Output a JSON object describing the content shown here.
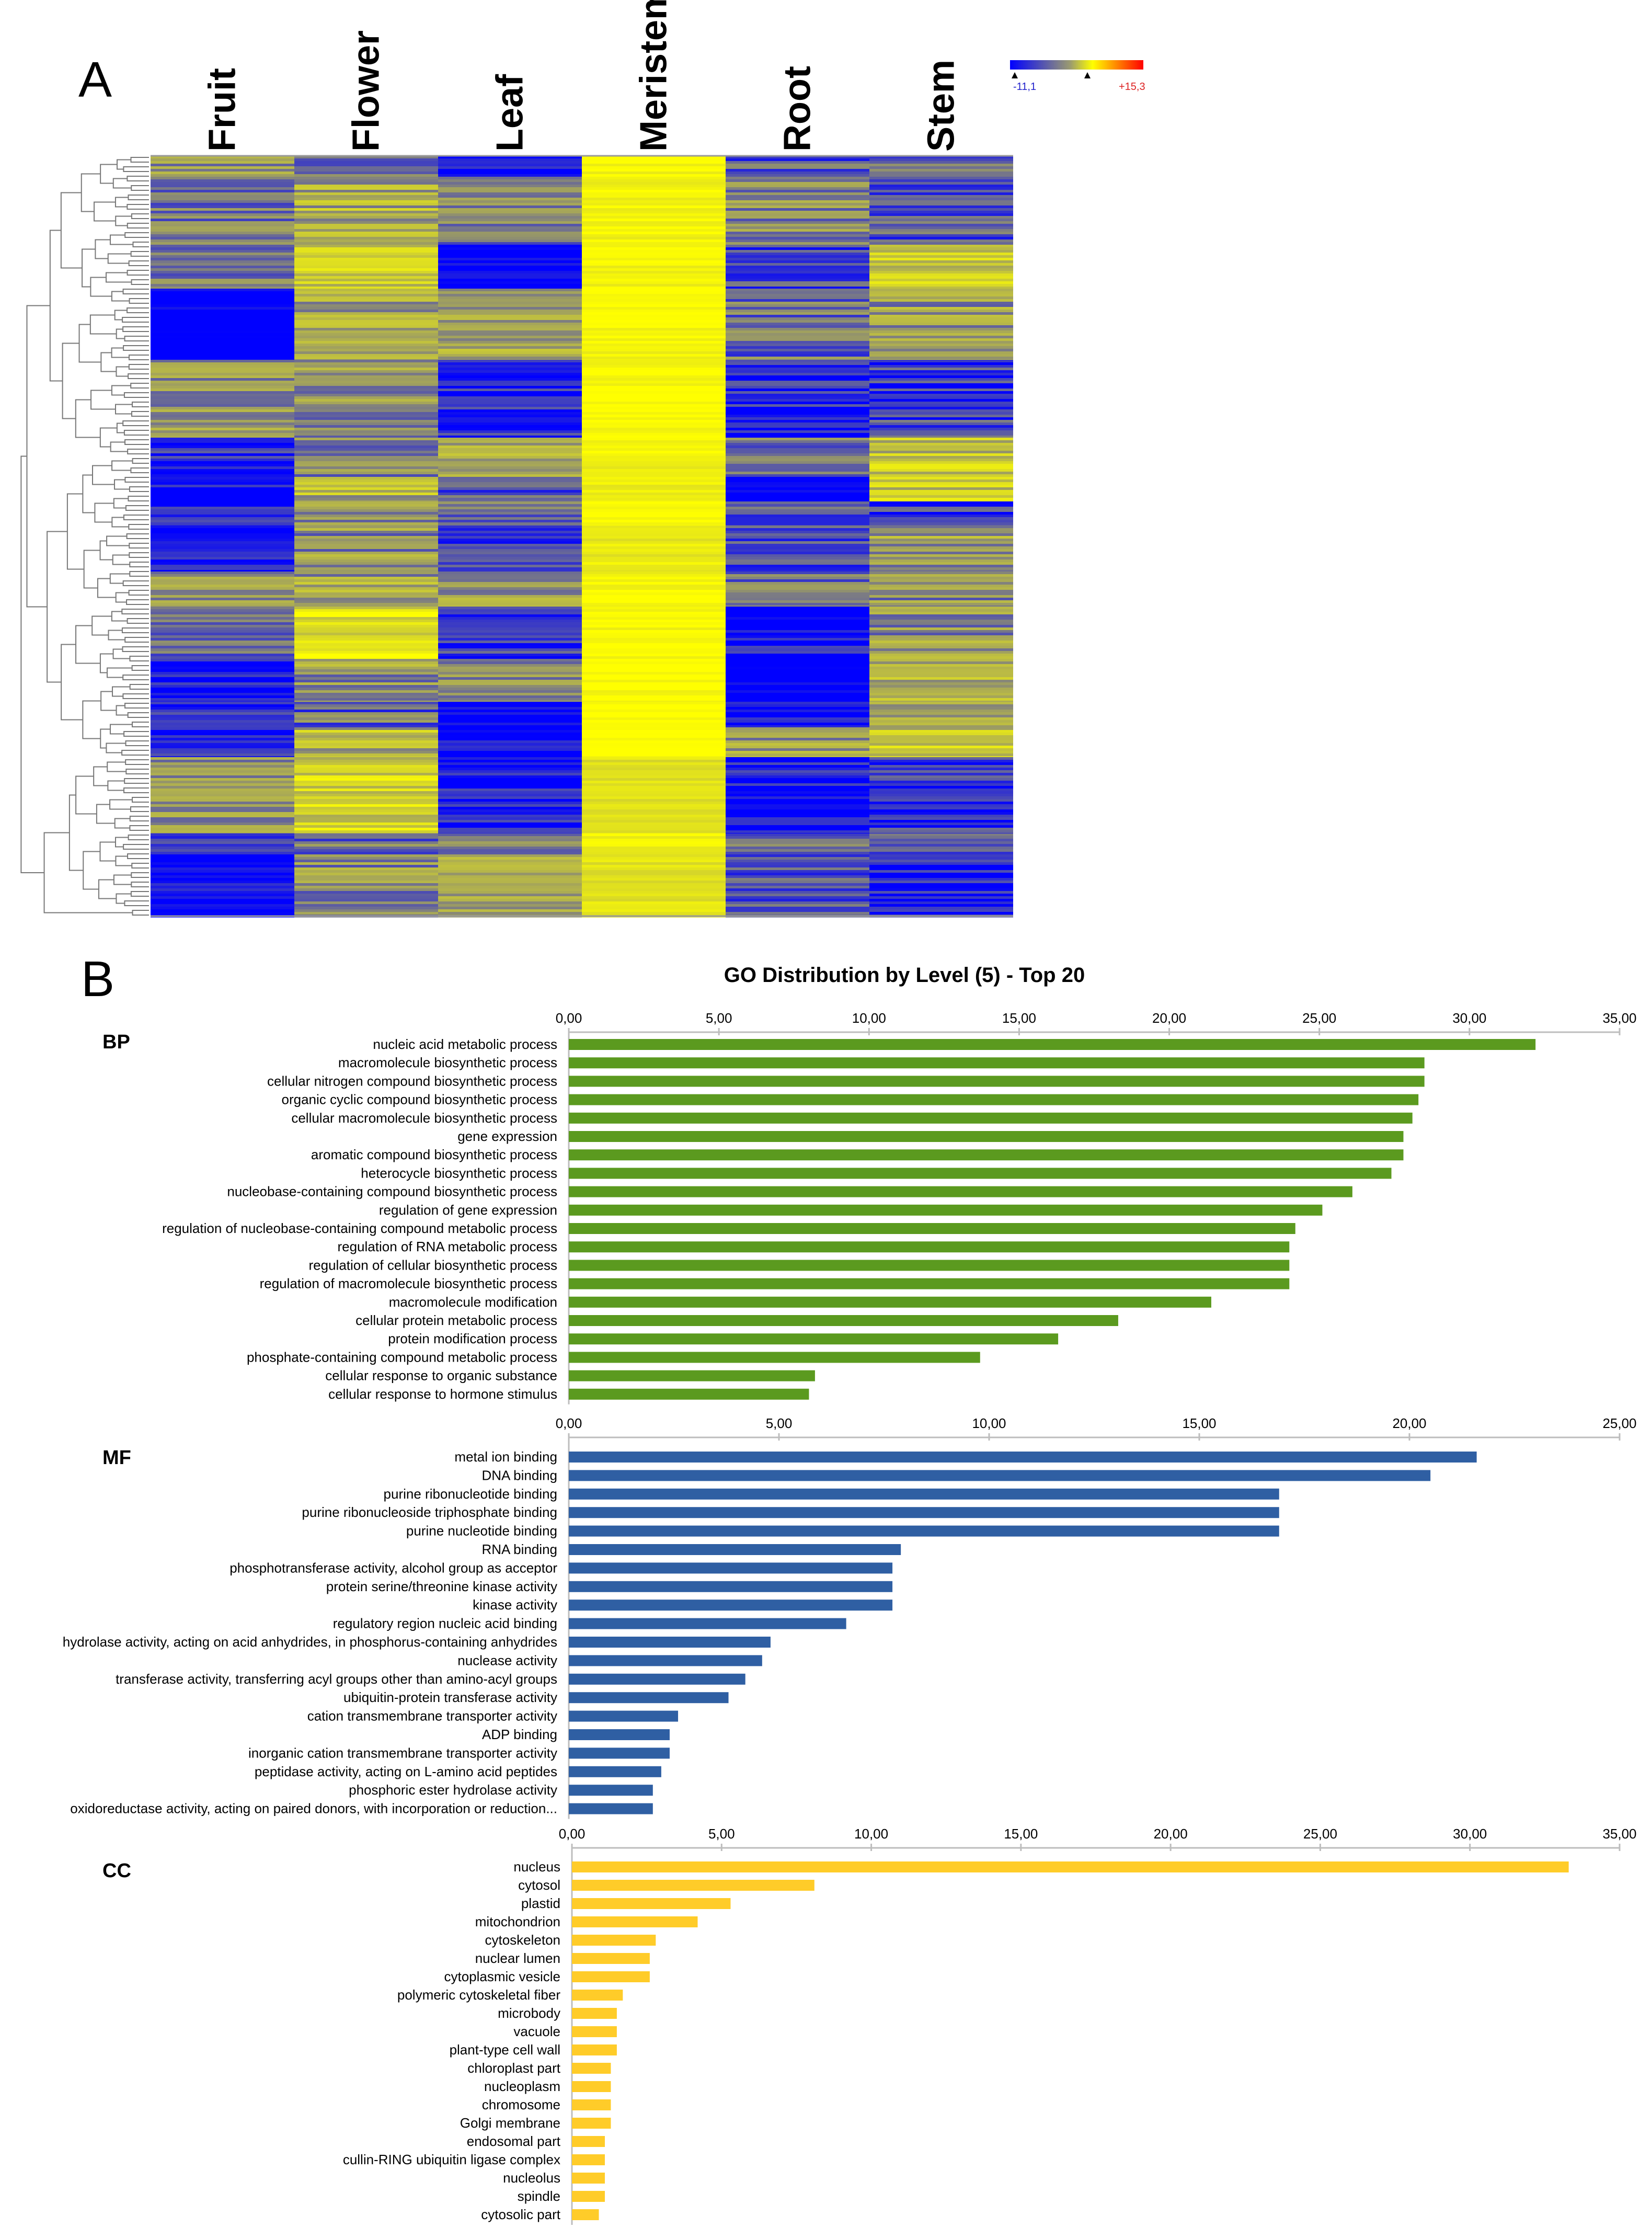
{
  "panels": {
    "a_letter": "A",
    "b_letter": "B"
  },
  "heatmap": {
    "samples": [
      "Fruit",
      "Flower",
      "Leaf",
      "Meristem",
      "Root",
      "Stem"
    ],
    "scale_min": "-11,1",
    "scale_max": "+15,3",
    "colors": {
      "low": "#0000ff",
      "mid": "#a0a060",
      "high": "#ffff00",
      "scale_high": "#ff0000"
    }
  },
  "chart_data": [
    {
      "type": "bar",
      "orientation": "horizontal",
      "title": "GO Distribution by Level (5) - Top 20",
      "section": "BP",
      "color": "#5b9a1f",
      "xlim": [
        0,
        35
      ],
      "ticks": [
        "0,00",
        "5,00",
        "10,00",
        "15,00",
        "20,00",
        "25,00",
        "30,00",
        "35,00"
      ],
      "categories": [
        "nucleic acid metabolic process",
        "macromolecule biosynthetic process",
        "cellular nitrogen compound biosynthetic process",
        "organic cyclic compound biosynthetic process",
        "cellular macromolecule biosynthetic process",
        "gene expression",
        "aromatic compound biosynthetic process",
        "heterocycle biosynthetic process",
        "nucleobase-containing compound biosynthetic process",
        "regulation of gene expression",
        "regulation of nucleobase-containing compound metabolic process",
        "regulation of RNA metabolic process",
        "regulation of cellular biosynthetic process",
        "regulation of macromolecule biosynthetic process",
        "macromolecule modification",
        "cellular protein metabolic process",
        "protein modification process",
        "phosphate-containing compound metabolic process",
        "cellular response to organic substance",
        "cellular response to hormone stimulus"
      ],
      "values": [
        32.2,
        28.5,
        28.5,
        28.3,
        28.1,
        27.8,
        27.8,
        27.4,
        26.1,
        25.1,
        24.2,
        24.0,
        24.0,
        24.0,
        21.4,
        18.3,
        16.3,
        13.7,
        8.2,
        8.0
      ]
    },
    {
      "type": "bar",
      "orientation": "horizontal",
      "section": "MF",
      "color": "#2f5fa3",
      "xlim": [
        0,
        25
      ],
      "ticks": [
        "0,00",
        "5,00",
        "10,00",
        "15,00",
        "20,00",
        "25,00"
      ],
      "categories": [
        "metal ion binding",
        "DNA binding",
        "purine ribonucleotide binding",
        "purine ribonucleoside triphosphate binding",
        "purine nucleotide binding",
        "RNA binding",
        "phosphotransferase activity, alcohol group as acceptor",
        "protein serine/threonine kinase activity",
        "kinase activity",
        "regulatory region nucleic acid binding",
        "hydrolase activity, acting on acid anhydrides, in phosphorus-containing anhydrides",
        "nuclease activity",
        "transferase activity, transferring acyl groups other than amino-acyl groups",
        "ubiquitin-protein transferase activity",
        "cation transmembrane transporter activity",
        "ADP binding",
        "inorganic cation transmembrane transporter activity",
        "peptidase activity, acting on L-amino acid peptides",
        "phosphoric ester hydrolase activity",
        "oxidoreductase activity, acting on paired donors, with incorporation or reduction..."
      ],
      "values": [
        21.6,
        20.5,
        16.9,
        16.9,
        16.9,
        7.9,
        7.7,
        7.7,
        7.7,
        6.6,
        4.8,
        4.6,
        4.2,
        3.8,
        2.6,
        2.4,
        2.4,
        2.2,
        2.0,
        2.0
      ]
    },
    {
      "type": "bar",
      "orientation": "horizontal",
      "section": "CC",
      "color": "#ffcc29",
      "xlim": [
        0,
        35
      ],
      "ticks": [
        "0,00",
        "5,00",
        "10,00",
        "15,00",
        "20,00",
        "25,00",
        "30,00",
        "35,00"
      ],
      "categories": [
        "nucleus",
        "cytosol",
        "plastid",
        "mitochondrion",
        "cytoskeleton",
        "nuclear lumen",
        "cytoplasmic vesicle",
        "polymeric cytoskeletal fiber",
        "microbody",
        "vacuole",
        "plant-type cell wall",
        "chloroplast part",
        "nucleoplasm",
        "chromosome",
        "Golgi membrane",
        "endosomal part",
        "cullin-RING ubiquitin ligase complex",
        "nucleolus",
        "spindle",
        "cytosolic part"
      ],
      "values": [
        33.3,
        8.1,
        5.3,
        4.2,
        2.8,
        2.6,
        2.6,
        1.7,
        1.5,
        1.5,
        1.5,
        1.3,
        1.3,
        1.3,
        1.3,
        1.1,
        1.1,
        1.1,
        1.1,
        0.9
      ]
    }
  ]
}
